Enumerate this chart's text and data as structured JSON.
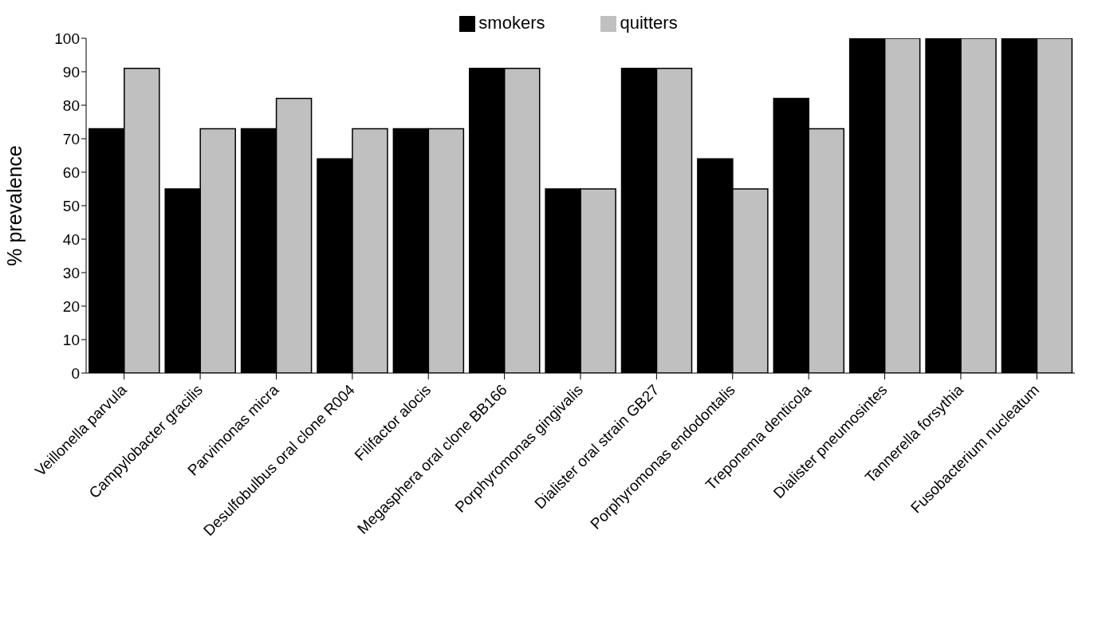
{
  "chart_data": {
    "type": "bar",
    "ylabel": "% prevalence",
    "categories": [
      "Veillonella parvula",
      "Campylobacter gracilis",
      "Parvimonas micra",
      "Desulfobulbus oral clone R004",
      "Filifactor alocis",
      "Megasphera oral clone BB166",
      "Porphyromonas gingivalis",
      "Dialister oral strain GB27",
      "Porphyromonas endodontalis",
      "Treponema denticola",
      "Dialister pneumosintes",
      "Tannerella forsythia",
      "Fusobacterium nucleatum"
    ],
    "series": [
      {
        "name": "smokers",
        "color": "#000000",
        "values": [
          73,
          55,
          73,
          64,
          73,
          91,
          55,
          91,
          64,
          82,
          100,
          100,
          100
        ]
      },
      {
        "name": "quitters",
        "color": "#c0c0c0",
        "values": [
          91,
          73,
          82,
          73,
          73,
          91,
          55,
          91,
          55,
          73,
          100,
          100,
          100
        ]
      }
    ],
    "ylim": [
      0,
      100
    ],
    "yticks": [
      0,
      10,
      20,
      30,
      40,
      50,
      60,
      70,
      80,
      90,
      100
    ],
    "grid": false,
    "legend": "top"
  }
}
